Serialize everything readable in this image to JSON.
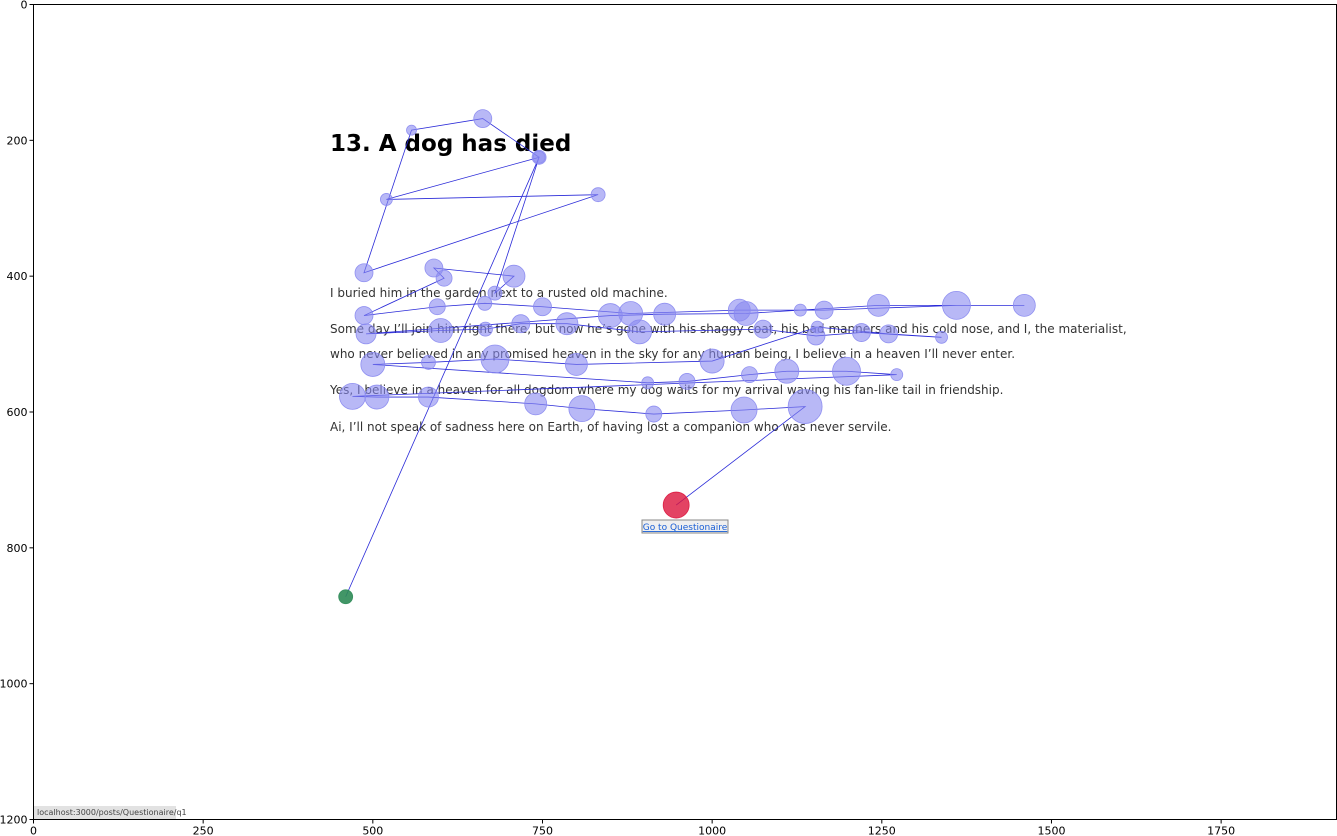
{
  "page": {
    "title": "13. A dog has died",
    "paragraphs": [
      "I buried him in the garden next to a rusted old machine.",
      "Some day I’ll join him right there, but now he’s gone with his shaggy coat, his bad manners and his cold nose, and I, the materialist,",
      "who never believed in any promised heaven in the sky for any human being, I believe in a heaven I’ll never enter.",
      "Yes, I believe in a heaven for all dogdom where my dog waits for my arrival waving his fan-like tail in friendship.",
      "Ai, I’ll not speak of sadness here on Earth, of having lost a companion who was never servile."
    ],
    "link_label": "Go to Questionaire",
    "status_url": "localhost:3000/posts/Questionaire/q1"
  },
  "colors": {
    "fixation": "#8888f0",
    "path": "#2a2ad8",
    "start": "#2e8b57",
    "end": "#dc143c"
  },
  "chart_data": {
    "type": "scatter",
    "title": "",
    "xlabel": "",
    "ylabel": "",
    "xlim": [
      0,
      1920
    ],
    "ylim": [
      1200,
      0
    ],
    "xticks": [
      0,
      250,
      500,
      750,
      1000,
      1250,
      1500,
      1750
    ],
    "yticks": [
      0,
      200,
      400,
      600,
      800,
      1000,
      1200
    ],
    "grid": false,
    "series": [
      {
        "x": [
          460,
          745,
          520,
          832,
          487,
          557,
          662,
          745,
          680,
          708,
          590,
          605,
          487,
          595,
          665,
          750,
          880,
          1040,
          1165,
          1360,
          1460,
          1245,
          1130,
          1050,
          930,
          850,
          490,
          600,
          666,
          718,
          786,
          893,
          1075,
          1153,
          1220,
          1338,
          1260,
          1155,
          1000,
          800,
          680,
          582,
          500,
          905,
          963,
          1055,
          1110,
          1198,
          1272,
          470,
          506,
          582,
          740,
          808,
          914,
          1047,
          1137,
          947
        ],
        "y": [
          872,
          225,
          287,
          280,
          395,
          185,
          168,
          225,
          425,
          400,
          388,
          403,
          458,
          445,
          440,
          445,
          455,
          450,
          450,
          443,
          443,
          443,
          450,
          455,
          456,
          458,
          485,
          480,
          478,
          470,
          470,
          482,
          478,
          488,
          483,
          490,
          485,
          475,
          525,
          530,
          522,
          527,
          530,
          557,
          555,
          545,
          540,
          540,
          545,
          577,
          578,
          578,
          588,
          595,
          603,
          597,
          592,
          737
        ],
        "r": [
          7,
          7,
          6,
          7,
          9,
          5,
          9,
          6,
          7,
          11,
          9,
          8,
          9,
          8,
          7,
          9,
          12,
          11,
          9,
          14,
          11,
          11,
          6,
          12,
          11,
          12,
          10,
          12,
          7,
          9,
          11,
          12,
          9,
          9,
          9,
          6,
          9,
          6,
          12,
          11,
          14,
          7,
          12,
          6,
          8,
          8,
          12,
          14,
          6,
          13,
          12,
          10,
          11,
          13,
          8,
          13,
          17,
          13
        ]
      }
    ]
  }
}
